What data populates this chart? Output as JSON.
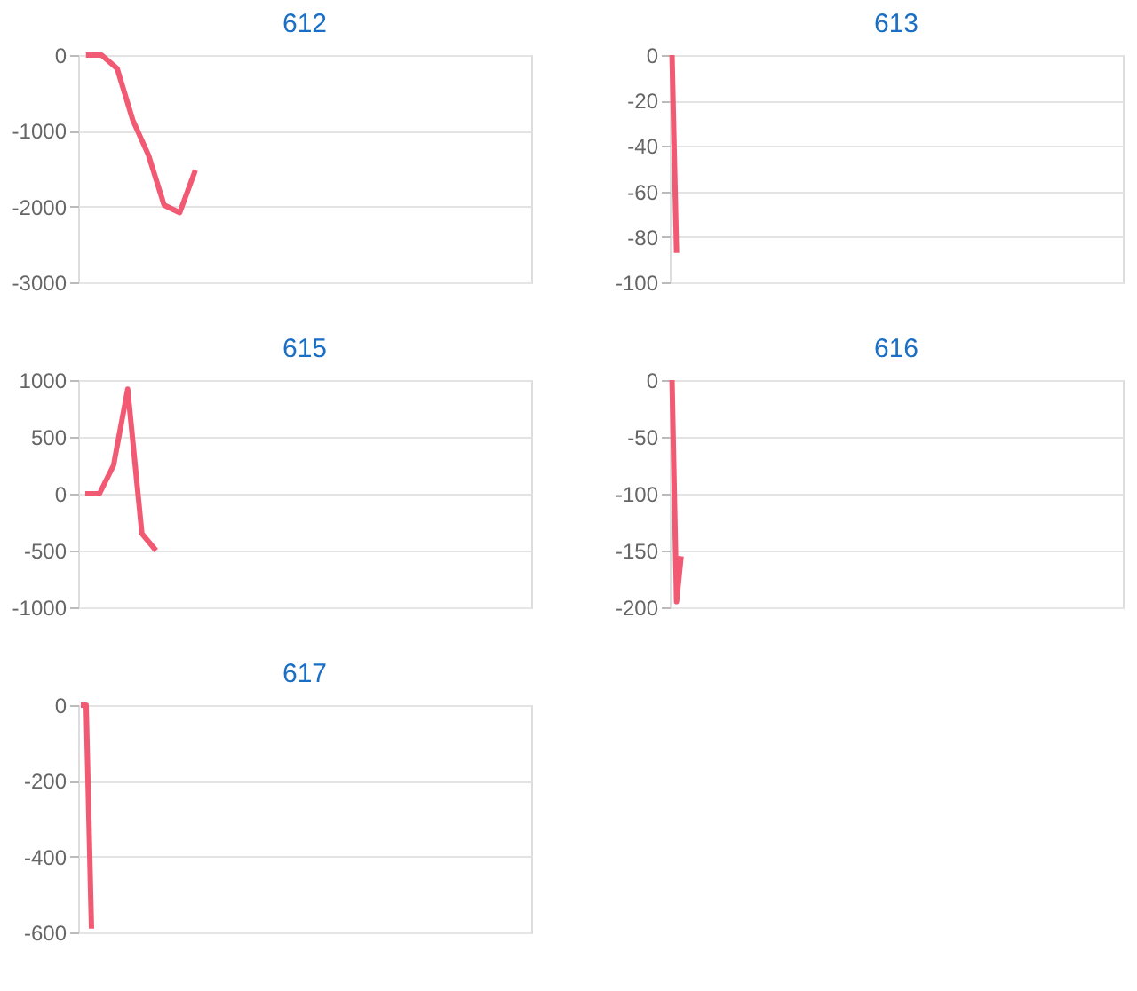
{
  "chart_data": [
    {
      "type": "line",
      "title": "612",
      "categories": [
        null,
        null,
        null,
        null,
        null,
        null,
        null,
        null,
        null,
        null,
        null,
        null,
        null,
        null,
        null,
        null,
        null,
        null,
        null,
        null,
        null,
        null,
        null,
        null,
        null,
        null,
        null,
        null,
        null
      ],
      "series": [
        {
          "color": "#f25a74",
          "values": [
            0,
            0,
            -180,
            -860,
            -1320,
            -1980,
            -2080,
            -1520,
            null,
            null,
            null,
            null,
            null,
            null,
            null,
            null,
            null,
            null,
            null,
            null,
            null,
            null,
            null,
            null,
            null,
            null,
            null,
            null,
            null
          ]
        }
      ],
      "ylim": [
        -3000,
        0
      ],
      "yticks": [
        0,
        -1000,
        -2000,
        -3000
      ],
      "grid": "y",
      "legend": false,
      "tick_labels": "y"
    },
    {
      "type": "line",
      "title": "613",
      "categories": [
        null,
        null,
        null,
        null,
        null,
        null,
        null,
        null,
        null,
        null,
        null,
        null,
        null,
        null,
        null,
        null,
        null,
        null,
        null,
        null,
        null,
        null,
        null,
        null,
        null,
        null,
        null,
        null,
        null,
        null,
        null,
        null,
        null,
        null,
        null,
        null,
        null,
        null,
        null,
        null,
        null,
        null,
        null,
        null,
        null,
        null,
        null,
        null,
        null,
        null,
        null,
        null,
        null,
        null,
        null,
        null,
        null,
        null,
        null,
        null,
        null,
        null,
        null,
        null,
        null,
        null,
        null,
        null,
        null,
        null,
        null,
        null,
        null,
        null,
        null,
        null,
        null,
        null,
        null,
        null,
        null,
        null,
        null,
        null,
        null,
        null,
        null,
        null,
        null,
        null,
        null,
        null,
        null,
        null,
        null,
        null,
        null,
        null,
        null,
        null
      ],
      "series": [
        {
          "color": "#f25a74",
          "values": [
            0,
            -87,
            null,
            null,
            null,
            null,
            null,
            null,
            null,
            null,
            null,
            null,
            null,
            null,
            null,
            null,
            null,
            null,
            null,
            null,
            null,
            null,
            null,
            null,
            null,
            null,
            null,
            null,
            null,
            null,
            null,
            null,
            null,
            null,
            null,
            null,
            null,
            null,
            null,
            null,
            null,
            null,
            null,
            null,
            null,
            null,
            null,
            null,
            null,
            null,
            null,
            null,
            null,
            null,
            null,
            null,
            null,
            null,
            null,
            null,
            null,
            null,
            null,
            null,
            null,
            null,
            null,
            null,
            null,
            null,
            null,
            null,
            null,
            null,
            null,
            null,
            null,
            null,
            null,
            null,
            null,
            null,
            null,
            null,
            null,
            null,
            null,
            null,
            null,
            null,
            null,
            null,
            null,
            null,
            null,
            null,
            null,
            null,
            null,
            null
          ]
        }
      ],
      "ylim": [
        -100,
        0
      ],
      "yticks": [
        0,
        -20,
        -40,
        -60,
        -80,
        -100
      ],
      "grid": "y",
      "legend": false,
      "tick_labels": "y"
    },
    {
      "type": "line",
      "title": "615",
      "categories": [
        null,
        null,
        null,
        null,
        null,
        null,
        null,
        null,
        null,
        null,
        null,
        null,
        null,
        null,
        null,
        null,
        null,
        null,
        null,
        null,
        null,
        null,
        null,
        null,
        null,
        null,
        null,
        null,
        null,
        null,
        null,
        null
      ],
      "series": [
        {
          "color": "#f25a74",
          "values": [
            0,
            0,
            250,
            920,
            -350,
            -500,
            null,
            null,
            null,
            null,
            null,
            null,
            null,
            null,
            null,
            null,
            null,
            null,
            null,
            null,
            null,
            null,
            null,
            null,
            null,
            null,
            null,
            null,
            null,
            null,
            null,
            null
          ]
        }
      ],
      "ylim": [
        -1000,
        1000
      ],
      "yticks": [
        1000,
        500,
        0,
        -500,
        -1000
      ],
      "grid": "y",
      "legend": false,
      "tick_labels": "y"
    },
    {
      "type": "line",
      "title": "616",
      "categories": [
        null,
        null,
        null,
        null,
        null,
        null,
        null,
        null,
        null,
        null,
        null,
        null,
        null,
        null,
        null,
        null,
        null,
        null,
        null,
        null,
        null,
        null,
        null,
        null,
        null,
        null,
        null,
        null,
        null,
        null,
        null,
        null,
        null,
        null,
        null,
        null,
        null,
        null,
        null,
        null,
        null,
        null,
        null,
        null,
        null,
        null,
        null,
        null,
        null,
        null,
        null,
        null,
        null,
        null,
        null,
        null,
        null,
        null,
        null,
        null,
        null,
        null,
        null,
        null,
        null,
        null,
        null,
        null,
        null,
        null,
        null,
        null,
        null,
        null,
        null,
        null,
        null,
        null,
        null,
        null,
        null,
        null,
        null,
        null,
        null,
        null,
        null,
        null,
        null,
        null,
        null,
        null,
        null,
        null,
        null,
        null,
        null,
        null,
        null,
        null
      ],
      "series": [
        {
          "color": "#f25a74",
          "values": [
            0,
            -195,
            -155,
            null,
            null,
            null,
            null,
            null,
            null,
            null,
            null,
            null,
            null,
            null,
            null,
            null,
            null,
            null,
            null,
            null,
            null,
            null,
            null,
            null,
            null,
            null,
            null,
            null,
            null,
            null,
            null,
            null,
            null,
            null,
            null,
            null,
            null,
            null,
            null,
            null,
            null,
            null,
            null,
            null,
            null,
            null,
            null,
            null,
            null,
            null,
            null,
            null,
            null,
            null,
            null,
            null,
            null,
            null,
            null,
            null,
            null,
            null,
            null,
            null,
            null,
            null,
            null,
            null,
            null,
            null,
            null,
            null,
            null,
            null,
            null,
            null,
            null,
            null,
            null,
            null,
            null,
            null,
            null,
            null,
            null,
            null,
            null,
            null,
            null,
            null,
            null,
            null,
            null,
            null,
            null,
            null,
            null,
            null,
            null,
            null
          ]
        }
      ],
      "ylim": [
        -200,
        0
      ],
      "yticks": [
        0,
        -50,
        -100,
        -150,
        -200
      ],
      "grid": "y",
      "legend": false,
      "tick_labels": "y"
    },
    {
      "type": "line",
      "title": "617",
      "categories": [
        null,
        null,
        null,
        null,
        null,
        null,
        null,
        null,
        null,
        null,
        null,
        null,
        null,
        null,
        null,
        null,
        null,
        null,
        null,
        null,
        null,
        null,
        null,
        null,
        null,
        null,
        null,
        null,
        null,
        null,
        null,
        null,
        null,
        null,
        null,
        null,
        null,
        null,
        null,
        null,
        null,
        null,
        null,
        null,
        null,
        null,
        null,
        null,
        null,
        null,
        null,
        null,
        null,
        null,
        null,
        null,
        null,
        null,
        null,
        null,
        null,
        null,
        null,
        null,
        null,
        null,
        null,
        null,
        null,
        null,
        null,
        null,
        null,
        null,
        null,
        null,
        null,
        null,
        null,
        null,
        null,
        null,
        null,
        null,
        null
      ],
      "series": [
        {
          "color": "#f25a74",
          "values": [
            0,
            0,
            -590,
            null,
            null,
            null,
            null,
            null,
            null,
            null,
            null,
            null,
            null,
            null,
            null,
            null,
            null,
            null,
            null,
            null,
            null,
            null,
            null,
            null,
            null,
            null,
            null,
            null,
            null,
            null,
            null,
            null,
            null,
            null,
            null,
            null,
            null,
            null,
            null,
            null,
            null,
            null,
            null,
            null,
            null,
            null,
            null,
            null,
            null,
            null,
            null,
            null,
            null,
            null,
            null,
            null,
            null,
            null,
            null,
            null,
            null,
            null,
            null,
            null,
            null,
            null,
            null,
            null,
            null,
            null,
            null,
            null,
            null,
            null,
            null,
            null,
            null,
            null,
            null,
            null,
            null,
            null,
            null,
            null,
            null
          ]
        }
      ],
      "ylim": [
        -600,
        0
      ],
      "yticks": [
        0,
        -200,
        -400,
        -600
      ],
      "grid": "y",
      "legend": false,
      "tick_labels": "y"
    }
  ]
}
